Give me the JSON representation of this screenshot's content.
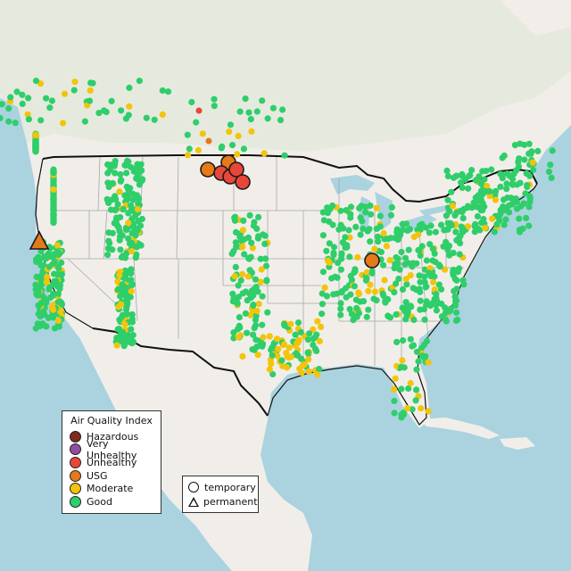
{
  "colors": {
    "water": "#aad3df",
    "land": "#f1eeea",
    "land_us": "#f4f1ed",
    "forest": "#dfe8d6",
    "border": "#111111",
    "state_line": "#a7a7a7"
  },
  "legend": {
    "title": "Air Quality Index",
    "categories": [
      {
        "label": "Hazardous",
        "color": "#7e2a1c"
      },
      {
        "label": "Very Unhealthy",
        "color": "#8f4fa0"
      },
      {
        "label": "Unhealthy",
        "color": "#e9463a"
      },
      {
        "label": "USG",
        "color": "#e57a18"
      },
      {
        "label": "Moderate",
        "color": "#f2c40c"
      },
      {
        "label": "Good",
        "color": "#2fce6b"
      }
    ]
  },
  "shape_legend": {
    "items": [
      {
        "label": "temporary",
        "shape": "circle-icon"
      },
      {
        "label": "permanent",
        "shape": "triangle-icon"
      }
    ]
  }
}
